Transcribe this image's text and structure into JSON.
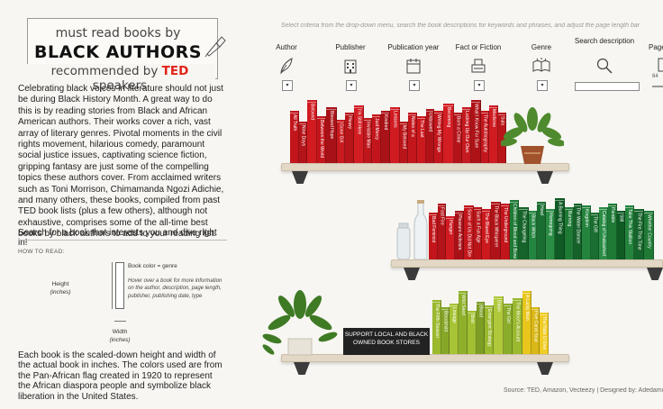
{
  "title": {
    "line1": "must read books by",
    "line2": "BLACK AUTHORS",
    "line3_prefix": "recommended by ",
    "line3_brand": "TED",
    "line3_suffix": " speakers",
    "brand_color": "#e2231a"
  },
  "description": "Celebrating black voices in literature should not just be during Black History Month. A great way to do this is by reading stories from Black and African American authors. Their works cover a rich, vast array of literary genres. Pivotal moments in the civil rights movement, hilarious comedy, paramount social justice issues, captivating science fiction, gripping fantasy are just some of the compelling topics these authors cover. From acclaimed writers such as Toni Morrison, Chimamanda Ngozi Adichie, and many others, these books, compiled from past TED book lists (plus a few others), although not exhaustive, comprises some of the all-time best books by black authors to add to your reading list.",
  "search_hint": "Search for a book that interests you and dive right in!",
  "howto": {
    "heading": "HOW TO READ:",
    "height": "Height",
    "height_unit": "(inches)",
    "book_color": "Book color = genre",
    "hover": "Hover over a book for more information on the author, description, page length, publisher, publishing date, type",
    "width": "Width",
    "width_unit": "(inches)"
  },
  "scale_text": "Each book is the scaled-down height and width of the actual book in inches. The colors used are from the Pan-African flag created in 1920 to represent the African diaspora people and symbolize black liberation in the United States.",
  "instruction": "Select criteria from the drop-down menu, search the book descriptions for keywords and phrases, and adjust the page length bar",
  "filters": [
    {
      "label": "Author",
      "icon": "feather-icon",
      "dropdown": "▾"
    },
    {
      "label": "Publisher",
      "icon": "building-icon",
      "dropdown": "▾"
    },
    {
      "label": "Publication year",
      "icon": "calendar-icon",
      "dropdown": "▾"
    },
    {
      "label": "Fact or Fiction",
      "icon": "typewriter-icon",
      "dropdown": "▾"
    },
    {
      "label": "Genre",
      "icon": "open-book-icon",
      "dropdown": "▾"
    },
    {
      "label": "Search description",
      "icon": "magnifier-icon"
    },
    {
      "label": "Page",
      "icon": "page-icon"
    }
  ],
  "page_min": "64",
  "sign_text": "SUPPORT LOCAL AND BLACK OWNED BOOK STORES",
  "source": "Source: TED, Amazon, Vecteezy | Designed by: Adedamola",
  "colors": {
    "red": "#c3161c",
    "green": "#1f7a36",
    "yellow_green": "#9ab92e",
    "yellow": "#e8c61c",
    "shelf": "#e3d7c5"
  },
  "shelves": [
    {
      "books": [
        {
          "title": "All Truth",
          "color": "#c3161c"
        },
        {
          "title": "Nine Days",
          "color": "#b31419"
        },
        {
          "title": "Beloved",
          "color": "#d01b21"
        },
        {
          "title": "Between the World",
          "color": "#c3161c"
        },
        {
          "title": "Blessed Hope",
          "color": "#a81217"
        },
        {
          "title": "Gone Girl",
          "color": "#c91a1f"
        },
        {
          "title": "Heavy",
          "color": "#b71519"
        },
        {
          "title": "I'm Still Here",
          "color": "#d21d23"
        },
        {
          "title": "Invisible Man",
          "color": "#bd161b"
        },
        {
          "title": "Just Mercy",
          "color": "#c3161c"
        },
        {
          "title": "Kindred",
          "color": "#a91318"
        },
        {
          "title": "Lessons",
          "color": "#d01b21"
        },
        {
          "title": "My Beloved",
          "color": "#b91519"
        },
        {
          "title": "Notes of a",
          "color": "#c3161c"
        },
        {
          "title": "The Last",
          "color": "#cc191e"
        },
        {
          "title": "Unbowed",
          "color": "#af1318"
        },
        {
          "title": "Writing My Wrongs",
          "color": "#c3161c"
        },
        {
          "title": "Becoming",
          "color": "#d41e24"
        },
        {
          "title": "Born a Crime",
          "color": "#b31419"
        },
        {
          "title": "Locking Up Our Own",
          "color": "#c51a1f"
        },
        {
          "title": "What I Know For Sure",
          "color": "#ad1217"
        },
        {
          "title": "The Autobiography",
          "color": "#c3161c"
        },
        {
          "title": "Medicine",
          "color": "#d01b21"
        },
        {
          "title": "Sula",
          "color": "#b91519"
        }
      ]
    },
    {
      "books": [
        {
          "title": "Bad Feminist",
          "color": "#c3161c"
        },
        {
          "title": "Fast Fire",
          "color": "#b31419"
        },
        {
          "title": "Hunger",
          "color": "#d01b21"
        },
        {
          "title": "Pleasure Activism",
          "color": "#a81217"
        },
        {
          "title": "Some of Us Did Not Die",
          "color": "#c3161c"
        },
        {
          "title": "Such a Fun Age",
          "color": "#b91519"
        },
        {
          "title": "The Bluest Eye",
          "color": "#cc191e"
        },
        {
          "title": "The Black Whisperer",
          "color": "#af1318"
        },
        {
          "title": "The Underground",
          "color": "#c3161c"
        },
        {
          "title": "Children of Blood and Bone",
          "color": "#1f7a36"
        },
        {
          "title": "The Changeling",
          "color": "#16642b"
        },
        {
          "title": "Black Witch",
          "color": "#248540"
        },
        {
          "title": "Howl",
          "color": "#1a6e31"
        },
        {
          "title": "Homegoing",
          "color": "#2a8c45"
        },
        {
          "title": "A Burning Thing",
          "color": "#0f5a25"
        },
        {
          "title": "Burning",
          "color": "#1f7a36"
        },
        {
          "title": "The Water Dancer",
          "color": "#15612a"
        },
        {
          "title": "Kingdom",
          "color": "#24833d"
        },
        {
          "title": "The Gift",
          "color": "#1a6e31"
        },
        {
          "title": "Catalog of Unabashed",
          "color": "#2a8c45"
        },
        {
          "title": "Parable",
          "color": "#1f7a36"
        },
        {
          "title": "Still",
          "color": "#0f5a25"
        },
        {
          "title": "Take This Stallion",
          "color": "#24833d"
        },
        {
          "title": "The Fire This Time",
          "color": "#16642b"
        },
        {
          "title": "Whether Country",
          "color": "#1f7a36"
        }
      ]
    },
    {
      "books": [
        {
          "title": "The Fifth Season",
          "color": "#9ab92e"
        },
        {
          "title": "Bloodchild",
          "color": "#86a628"
        },
        {
          "title": "Lineage",
          "color": "#a7c436"
        },
        {
          "title": "Wild Seed",
          "color": "#8eb02b"
        },
        {
          "title": "Binti",
          "color": "#a1bf32"
        },
        {
          "title": "Blood",
          "color": "#7d9e24"
        },
        {
          "title": "Emergent Strategy",
          "color": "#9ab92e"
        },
        {
          "title": "Dawn",
          "color": "#b0c93b"
        },
        {
          "title": "The Girl",
          "color": "#8aac2a"
        },
        {
          "title": "The Moor's Account",
          "color": "#9ab92e"
        },
        {
          "title": "A Lucky Man",
          "color": "#e8c61c"
        },
        {
          "title": "Five Carat Soul",
          "color": "#d9b716"
        },
        {
          "title": "The Hate U Give",
          "color": "#f0cc24"
        }
      ]
    }
  ]
}
